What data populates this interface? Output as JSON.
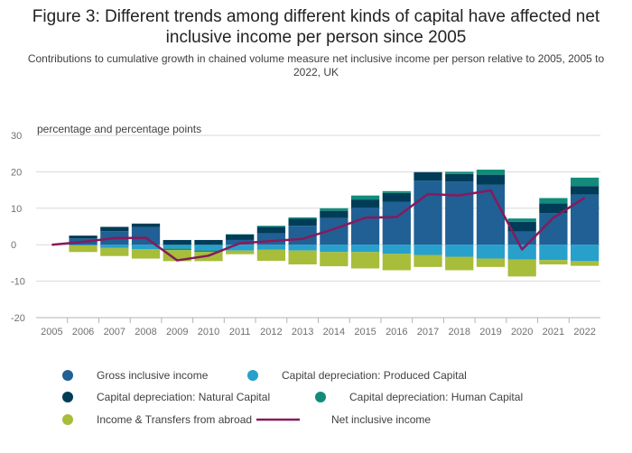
{
  "chart_data": {
    "type": "bar",
    "title": "Figure 3: Different trends among different kinds of capital have affected net inclusive income per person since 2005",
    "subtitle": "Contributions to cumulative growth in chained volume measure net inclusive income per person relative to 2005, 2005 to 2022, UK",
    "ylabel": "percentage and percentage points",
    "ylim": [
      -20,
      30
    ],
    "yticks": [
      30,
      20,
      10,
      0,
      -10,
      -20
    ],
    "categories": [
      "2005",
      "2006",
      "2007",
      "2008",
      "2009",
      "2010",
      "2011",
      "2012",
      "2013",
      "2014",
      "2015",
      "2016",
      "2017",
      "2018",
      "2019",
      "2020",
      "2021",
      "2022"
    ],
    "stacked": true,
    "grid": true,
    "legend_position": "bottom",
    "series": [
      {
        "name": "Gross inclusive income",
        "type": "bar",
        "color": "#206095",
        "values": [
          0,
          1.7,
          3.7,
          4.8,
          0,
          0,
          1.3,
          3.1,
          5.2,
          7.3,
          10.2,
          11.8,
          17.6,
          17.3,
          16.5,
          3.6,
          8.7,
          13.8
        ]
      },
      {
        "name": "Capital depreciation: Produced Capital",
        "type": "bar",
        "color": "#27a0cc",
        "values": [
          0,
          -0.2,
          -0.9,
          -1.2,
          -1.0,
          -1.5,
          -1.6,
          -1.4,
          -1.6,
          -2.0,
          -2.0,
          -2.5,
          -2.8,
          -3.3,
          -3.8,
          -4.1,
          -4.2,
          -4.5
        ]
      },
      {
        "name": "Capital depreciation: Natural Capital",
        "type": "bar",
        "color": "#003c57",
        "values": [
          0,
          0.8,
          1.2,
          1.0,
          1.3,
          1.3,
          1.5,
          1.8,
          1.9,
          2.0,
          2.2,
          2.4,
          2.3,
          2.1,
          2.7,
          2.7,
          2.6,
          2.3
        ]
      },
      {
        "name": "Capital depreciation: Human Capital",
        "type": "bar",
        "color": "#118c7b",
        "values": [
          0,
          0,
          0,
          0,
          -0.5,
          -0.5,
          0.1,
          0.3,
          0.4,
          0.7,
          1.1,
          0.5,
          0,
          0.6,
          1.4,
          0.9,
          1.5,
          2.3
        ]
      },
      {
        "name": "Income & Transfers from abroad",
        "type": "bar",
        "color": "#a8bd3a",
        "values": [
          0,
          -1.8,
          -2.2,
          -2.6,
          -3.0,
          -2.5,
          -1.0,
          -3.0,
          -3.8,
          -3.9,
          -4.5,
          -4.5,
          -3.3,
          -3.7,
          -2.3,
          -4.6,
          -1.2,
          -1.3
        ]
      },
      {
        "name": "Net inclusive income",
        "type": "line",
        "color": "#871a5b",
        "values": [
          0,
          0.8,
          1.8,
          1.9,
          -4.3,
          -3.0,
          0.4,
          1.0,
          1.6,
          4.3,
          7.4,
          7.6,
          13.9,
          13.5,
          14.9,
          -1.3,
          7.4,
          12.9
        ]
      }
    ]
  }
}
